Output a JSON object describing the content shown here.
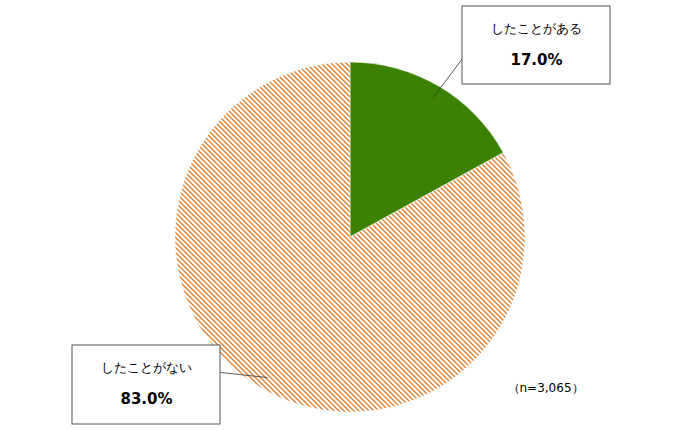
{
  "chart_data": {
    "type": "pie",
    "categories": [
      "したことがある",
      "したことがない"
    ],
    "values": [
      17.0,
      83.0
    ],
    "value_labels": [
      "17.0%",
      "83.0%"
    ],
    "colors": [
      "#3a8200",
      "#e07b2a"
    ],
    "data_labels": true,
    "annotation": "（n=3,065）"
  }
}
